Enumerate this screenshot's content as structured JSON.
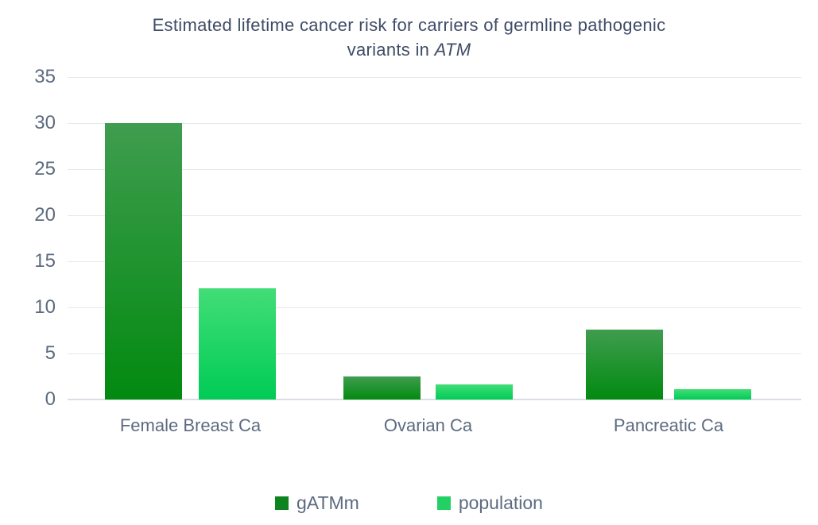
{
  "title": {
    "line1": "Estimated lifetime cancer risk for carriers of germline pathogenic",
    "line2_prefix": "variants in ",
    "gene": "ATM"
  },
  "colors": {
    "title_text": "#3f4c66",
    "axis_label_text": "#5d6b80",
    "gridline": "#e4e8ef",
    "zero_line": "#d9dee6",
    "background": "#ffffff",
    "series_gatmm_top": "#3f9d4f",
    "series_gatmm_bottom": "#028a10",
    "series_gatmm_legend": "#0e8420",
    "series_population_top": "#42dd76",
    "series_population_bottom": "#00cc55",
    "series_population_legend": "#22d063"
  },
  "chart_data": {
    "type": "bar",
    "title": "Estimated lifetime cancer risk for carriers of germline pathogenic variants in ATM",
    "categories": [
      "Female Breast Ca",
      "Ovarian Ca",
      "Pancreatic Ca"
    ],
    "series": [
      {
        "name": "gATMm",
        "values": [
          30,
          2.5,
          7.6
        ]
      },
      {
        "name": "population",
        "values": [
          12.1,
          1.6,
          1.1
        ]
      }
    ],
    "xlabel": "",
    "ylabel": "",
    "ylim": [
      0,
      35
    ],
    "yticks": [
      0,
      5,
      10,
      15,
      20,
      25,
      30,
      35
    ],
    "grid": true,
    "legend_position": "bottom",
    "legend": [
      "gATMm",
      "population"
    ]
  }
}
